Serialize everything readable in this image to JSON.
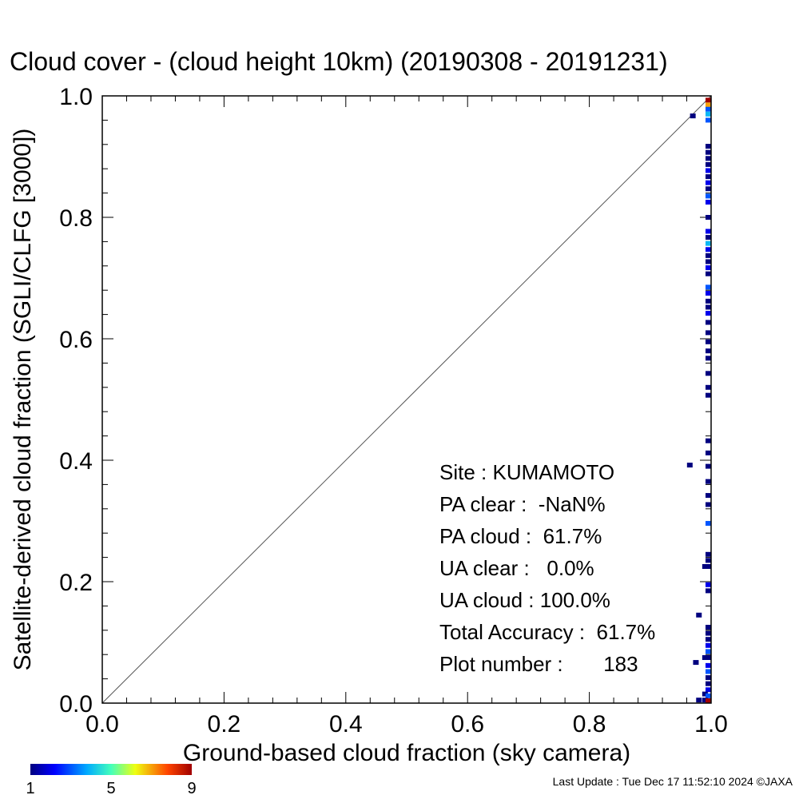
{
  "chart_data": {
    "type": "heatmap",
    "title": "Cloud cover - (cloud height 10km)  (20190308 - 20191231)",
    "xlabel": "Ground-based cloud fraction (sky camera)",
    "ylabel": "Satellite-derived cloud fraction (SGLI/CLFG [3000])",
    "xlim": [
      0.0,
      1.0
    ],
    "ylim": [
      0.0,
      1.0
    ],
    "xticks": [
      "0.0",
      "0.2",
      "0.4",
      "0.6",
      "0.8",
      "1.0"
    ],
    "yticks": [
      "0.0",
      "0.2",
      "0.4",
      "0.6",
      "0.8",
      "1.0"
    ],
    "grid": false,
    "reference_line": "1:1 diagonal",
    "colorbar": {
      "min": 1,
      "max": 9,
      "tick_labels": [
        "1",
        "5",
        "9"
      ],
      "colormap": "rainbow"
    },
    "points": [
      {
        "x": 0.97,
        "y": 0.967,
        "count": 1
      },
      {
        "x": 1.0,
        "y": 0.993,
        "count": 9
      },
      {
        "x": 1.0,
        "y": 0.985,
        "count": 7
      },
      {
        "x": 1.0,
        "y": 0.978,
        "count": 3
      },
      {
        "x": 1.0,
        "y": 0.97,
        "count": 4
      },
      {
        "x": 1.0,
        "y": 0.96,
        "count": 3
      },
      {
        "x": 1.0,
        "y": 0.917,
        "count": 1
      },
      {
        "x": 1.0,
        "y": 0.907,
        "count": 1
      },
      {
        "x": 1.0,
        "y": 0.897,
        "count": 1
      },
      {
        "x": 1.0,
        "y": 0.887,
        "count": 1
      },
      {
        "x": 1.0,
        "y": 0.877,
        "count": 2
      },
      {
        "x": 1.0,
        "y": 0.867,
        "count": 1
      },
      {
        "x": 1.0,
        "y": 0.857,
        "count": 2
      },
      {
        "x": 1.0,
        "y": 0.847,
        "count": 1
      },
      {
        "x": 1.0,
        "y": 0.835,
        "count": 3
      },
      {
        "x": 1.0,
        "y": 0.825,
        "count": 2
      },
      {
        "x": 1.0,
        "y": 0.8,
        "count": 1
      },
      {
        "x": 1.0,
        "y": 0.777,
        "count": 2
      },
      {
        "x": 1.0,
        "y": 0.767,
        "count": 1
      },
      {
        "x": 1.0,
        "y": 0.757,
        "count": 4
      },
      {
        "x": 1.0,
        "y": 0.747,
        "count": 2
      },
      {
        "x": 1.0,
        "y": 0.737,
        "count": 1
      },
      {
        "x": 1.0,
        "y": 0.727,
        "count": 1
      },
      {
        "x": 1.0,
        "y": 0.717,
        "count": 2
      },
      {
        "x": 1.0,
        "y": 0.707,
        "count": 1
      },
      {
        "x": 1.0,
        "y": 0.685,
        "count": 3
      },
      {
        "x": 1.0,
        "y": 0.675,
        "count": 2
      },
      {
        "x": 1.0,
        "y": 0.662,
        "count": 1
      },
      {
        "x": 1.0,
        "y": 0.652,
        "count": 1
      },
      {
        "x": 1.0,
        "y": 0.642,
        "count": 2
      },
      {
        "x": 1.0,
        "y": 0.627,
        "count": 1
      },
      {
        "x": 1.0,
        "y": 0.61,
        "count": 1
      },
      {
        "x": 1.0,
        "y": 0.595,
        "count": 1
      },
      {
        "x": 1.0,
        "y": 0.58,
        "count": 1
      },
      {
        "x": 1.0,
        "y": 0.568,
        "count": 1
      },
      {
        "x": 1.0,
        "y": 0.543,
        "count": 1
      },
      {
        "x": 1.0,
        "y": 0.52,
        "count": 1
      },
      {
        "x": 1.0,
        "y": 0.507,
        "count": 1
      },
      {
        "x": 1.0,
        "y": 0.432,
        "count": 1
      },
      {
        "x": 1.0,
        "y": 0.412,
        "count": 1
      },
      {
        "x": 0.965,
        "y": 0.392,
        "count": 1
      },
      {
        "x": 1.0,
        "y": 0.39,
        "count": 1
      },
      {
        "x": 1.0,
        "y": 0.365,
        "count": 1
      },
      {
        "x": 1.0,
        "y": 0.342,
        "count": 1
      },
      {
        "x": 1.0,
        "y": 0.327,
        "count": 1
      },
      {
        "x": 1.0,
        "y": 0.296,
        "count": 3
      },
      {
        "x": 1.0,
        "y": 0.245,
        "count": 1
      },
      {
        "x": 1.0,
        "y": 0.235,
        "count": 1
      },
      {
        "x": 0.99,
        "y": 0.225,
        "count": 1
      },
      {
        "x": 1.0,
        "y": 0.225,
        "count": 1
      },
      {
        "x": 1.0,
        "y": 0.195,
        "count": 2
      },
      {
        "x": 1.0,
        "y": 0.185,
        "count": 1
      },
      {
        "x": 0.98,
        "y": 0.145,
        "count": 1
      },
      {
        "x": 1.0,
        "y": 0.125,
        "count": 1
      },
      {
        "x": 1.0,
        "y": 0.115,
        "count": 1
      },
      {
        "x": 1.0,
        "y": 0.105,
        "count": 1
      },
      {
        "x": 1.0,
        "y": 0.095,
        "count": 2
      },
      {
        "x": 1.0,
        "y": 0.085,
        "count": 3
      },
      {
        "x": 1.0,
        "y": 0.075,
        "count": 1
      },
      {
        "x": 0.99,
        "y": 0.075,
        "count": 1
      },
      {
        "x": 0.975,
        "y": 0.067,
        "count": 1
      },
      {
        "x": 1.0,
        "y": 0.062,
        "count": 2
      },
      {
        "x": 1.0,
        "y": 0.052,
        "count": 3
      },
      {
        "x": 1.0,
        "y": 0.042,
        "count": 1
      },
      {
        "x": 1.0,
        "y": 0.032,
        "count": 1
      },
      {
        "x": 1.0,
        "y": 0.022,
        "count": 2
      },
      {
        "x": 0.99,
        "y": 0.015,
        "count": 1
      },
      {
        "x": 1.0,
        "y": 0.012,
        "count": 3
      },
      {
        "x": 0.98,
        "y": 0.005,
        "count": 1
      },
      {
        "x": 0.99,
        "y": 0.005,
        "count": 1
      },
      {
        "x": 1.0,
        "y": 0.003,
        "count": 9
      }
    ]
  },
  "stats": [
    {
      "label": "Site : KUMAMOTO"
    },
    {
      "label": "PA clear :  -NaN%"
    },
    {
      "label": "PA cloud :  61.7%"
    },
    {
      "label": "UA clear :   0.0%"
    },
    {
      "label": "UA cloud : 100.0%"
    },
    {
      "label": "Total Accuracy :  61.7%"
    },
    {
      "label": "Plot number :       183"
    }
  ],
  "footer": "Last Update : Tue Dec 17 11:52:10 2024  ©JAXA"
}
